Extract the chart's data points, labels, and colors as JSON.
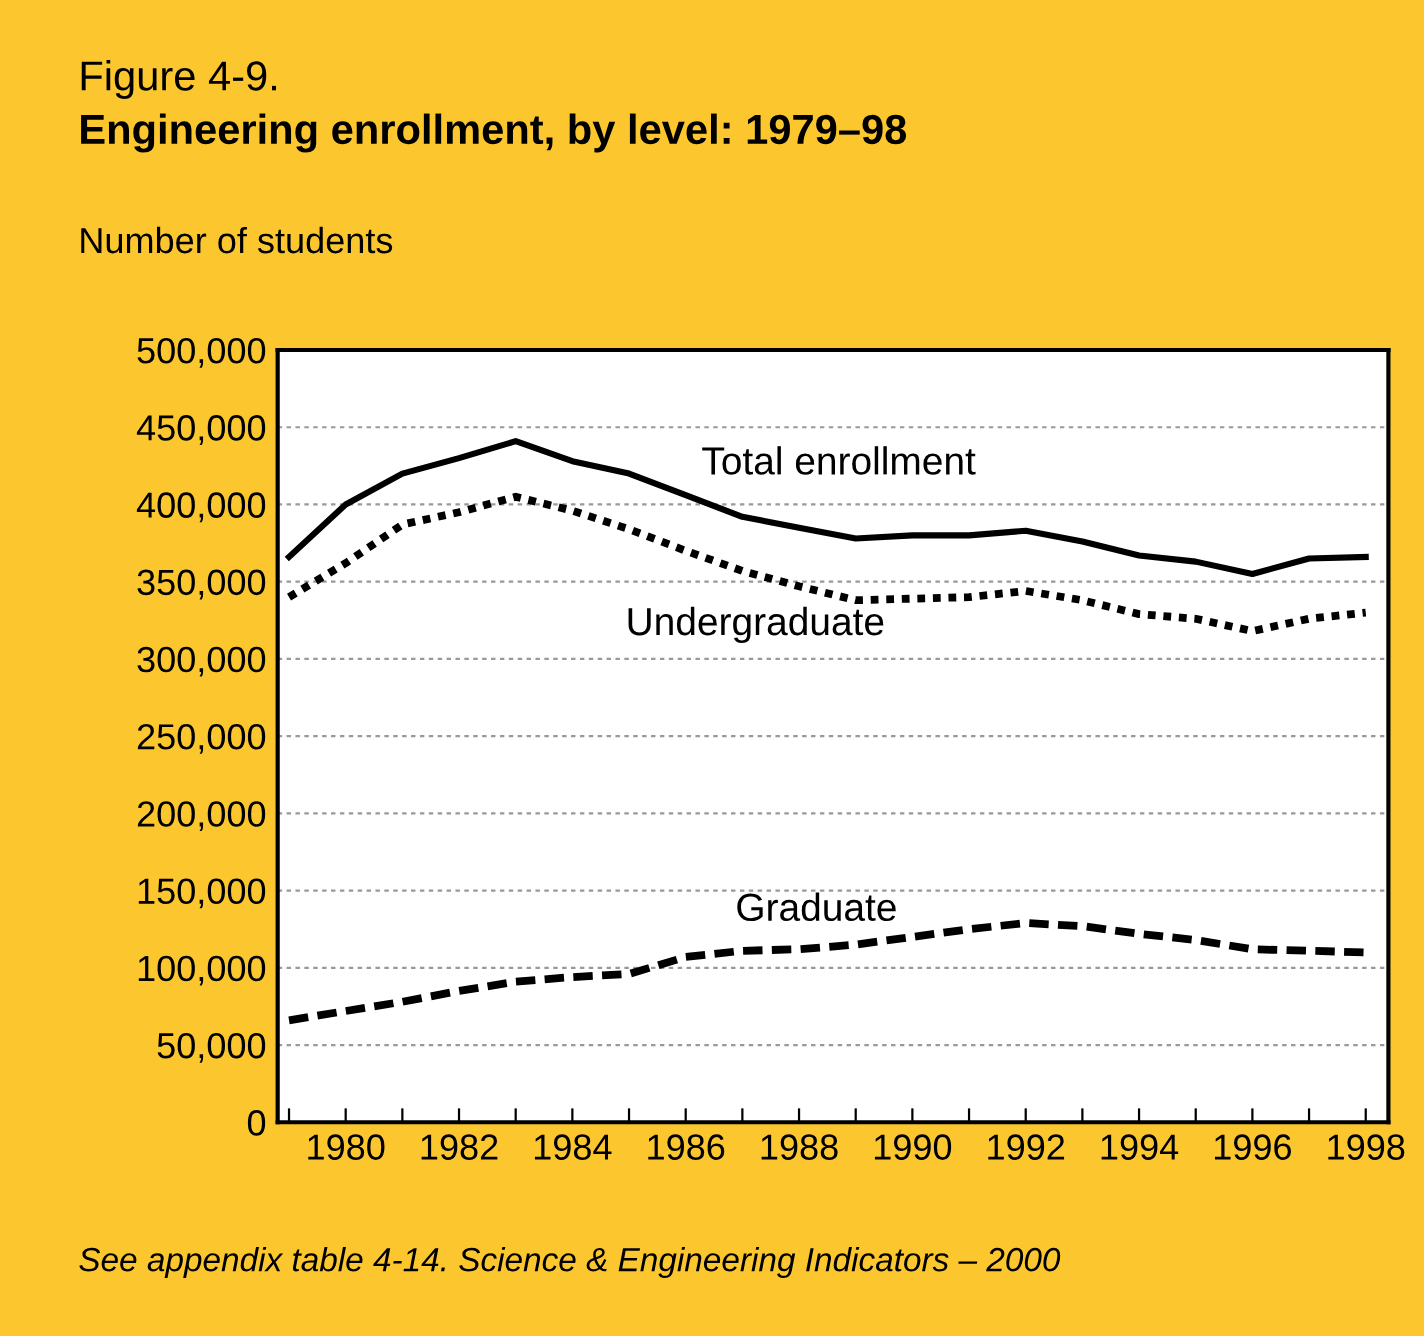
{
  "chart_data": {
    "type": "line",
    "title": "Figure 4-9.",
    "subtitle": "Engineering enrollment, by level: 1979–98",
    "ylabel": "Number of students",
    "x": [
      1979,
      1980,
      1981,
      1982,
      1983,
      1984,
      1985,
      1986,
      1987,
      1988,
      1989,
      1990,
      1991,
      1992,
      1993,
      1994,
      1995,
      1996,
      1997,
      1998
    ],
    "series": [
      {
        "name": "Total enrollment",
        "color": "#000000",
        "line_style": "solid",
        "values": [
          366000,
          400000,
          420000,
          430000,
          441000,
          428000,
          420000,
          406000,
          392000,
          385000,
          378000,
          380000,
          380000,
          383000,
          376000,
          367000,
          363000,
          355000,
          365000,
          366000
        ]
      },
      {
        "name": "Undergraduate",
        "color": "#000000",
        "line_style": "dotted",
        "values": [
          340000,
          362000,
          387000,
          395000,
          405000,
          396000,
          384000,
          370000,
          357000,
          347000,
          338000,
          339000,
          340000,
          344000,
          338000,
          329000,
          326000,
          318000,
          326000,
          330000
        ]
      },
      {
        "name": "Graduate",
        "color": "#000000",
        "line_style": "dashed",
        "values": [
          66000,
          72000,
          78000,
          85000,
          91000,
          94000,
          96000,
          107000,
          111000,
          112000,
          115000,
          120000,
          125000,
          129000,
          127000,
          122000,
          118000,
          112000,
          111000,
          110000
        ]
      }
    ],
    "xlim": [
      1978.8,
      1998.4
    ],
    "xticks": [
      {
        "value": 1979,
        "label": null
      },
      1980,
      {
        "value": 1981,
        "label": null
      },
      1982,
      {
        "value": 1983,
        "label": null
      },
      1984,
      {
        "value": 1985,
        "label": null
      },
      1986,
      {
        "value": 1987,
        "label": null
      },
      1988,
      {
        "value": 1989,
        "label": null
      },
      1990,
      {
        "value": 1991,
        "label": null
      },
      1992,
      {
        "value": 1993,
        "label": null
      },
      1994,
      {
        "value": 1995,
        "label": null
      },
      1996,
      {
        "value": 1997,
        "label": null
      },
      1998
    ],
    "ylim": [
      0,
      500000
    ],
    "yticks": [
      {
        "value": 0,
        "label": "0"
      },
      {
        "value": 50000,
        "label": "50,000"
      },
      {
        "value": 100000,
        "label": "100,000"
      },
      {
        "value": 150000,
        "label": "150,000"
      },
      {
        "value": 200000,
        "label": "200,000"
      },
      {
        "value": 250000,
        "label": "250,000"
      },
      {
        "value": 300000,
        "label": "300,000"
      },
      {
        "value": 350000,
        "label": "350,000"
      },
      {
        "value": 400000,
        "label": "400,000"
      },
      {
        "value": 450000,
        "label": "450,000"
      },
      {
        "value": 500000,
        "label": "500,000"
      }
    ],
    "grid": "y",
    "legend": false,
    "annotations": [
      "See appendix table 4-14. Science & Engineering Indicators – 2000"
    ]
  }
}
